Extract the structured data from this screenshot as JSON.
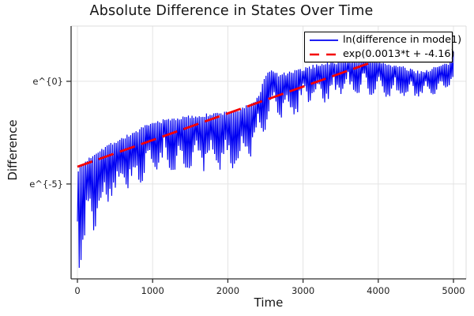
{
  "title": "Absolute Difference in States Over Time",
  "chart_data": {
    "type": "line",
    "title": "Absolute Difference in States Over Time",
    "xlabel": "Time",
    "ylabel": "Difference",
    "x_ticks": [
      0,
      1000,
      2000,
      3000,
      4000,
      5000
    ],
    "x_tick_labels": [
      "0",
      "1000",
      "2000",
      "3000",
      "4000",
      "5000"
    ],
    "y_tick_labels": [
      "e^{0}",
      "e^{-5}"
    ],
    "y_tick_values_ln": [
      0,
      -5
    ],
    "xlim": [
      -84,
      5168
    ],
    "ylim_ln": [
      -9.62,
      2.69
    ],
    "grid": true,
    "legend_position": "top-right",
    "grid_color": "#e4e4e4",
    "axis_color": "#2f2f2f",
    "frame_light_color": "#dcdcdc",
    "series": [
      {
        "name": "ln(difference in mode1)",
        "color": "#0000f2",
        "style": "solid",
        "spike_period": 24,
        "t_range": [
          0,
          5000
        ],
        "envelope_top": [
          [
            0,
            -4.35
          ],
          [
            100,
            -3.95
          ],
          [
            200,
            -3.62
          ],
          [
            300,
            -3.35
          ],
          [
            450,
            -3.05
          ],
          [
            600,
            -2.78
          ],
          [
            750,
            -2.52
          ],
          [
            900,
            -2.22
          ],
          [
            1050,
            -2.0
          ],
          [
            1200,
            -1.88
          ],
          [
            1400,
            -1.78
          ],
          [
            1600,
            -1.7
          ],
          [
            1800,
            -1.62
          ],
          [
            2000,
            -1.52
          ],
          [
            2150,
            -1.42
          ],
          [
            2300,
            -1.15
          ],
          [
            2400,
            -0.8
          ],
          [
            2470,
            -0.1
          ],
          [
            2520,
            0.45
          ],
          [
            2570,
            0.5
          ],
          [
            2680,
            0.3
          ],
          [
            2800,
            0.38
          ],
          [
            2950,
            0.52
          ],
          [
            3100,
            0.68
          ],
          [
            3250,
            0.85
          ],
          [
            3450,
            0.9
          ],
          [
            3650,
            1.0
          ],
          [
            3850,
            1.05
          ],
          [
            3980,
            0.98
          ],
          [
            4150,
            0.8
          ],
          [
            4300,
            0.68
          ],
          [
            4450,
            0.5
          ],
          [
            4600,
            0.45
          ],
          [
            4750,
            0.65
          ],
          [
            4900,
            0.8
          ],
          [
            4970,
            0.95
          ],
          [
            5000,
            1.4
          ]
        ],
        "envelope_bottom": [
          [
            0,
            -8.3
          ],
          [
            30,
            -9.4
          ],
          [
            90,
            -8.5
          ],
          [
            160,
            -7.7
          ],
          [
            260,
            -6.9
          ],
          [
            360,
            -6.3
          ],
          [
            470,
            -5.8
          ],
          [
            620,
            -5.4
          ],
          [
            820,
            -5.0
          ],
          [
            1000,
            -4.4
          ],
          [
            1300,
            -4.3
          ],
          [
            1600,
            -4.4
          ],
          [
            1900,
            -4.3
          ],
          [
            2150,
            -4.2
          ],
          [
            2300,
            -3.7
          ],
          [
            2400,
            -2.7
          ],
          [
            2500,
            -2.35
          ],
          [
            2620,
            -1.5
          ],
          [
            2760,
            -1.9
          ],
          [
            2900,
            -1.6
          ],
          [
            3000,
            -1.25
          ],
          [
            3150,
            -0.95
          ],
          [
            3300,
            -1.05
          ],
          [
            3500,
            -0.75
          ],
          [
            3700,
            -0.6
          ],
          [
            3900,
            -0.65
          ],
          [
            4100,
            -0.75
          ],
          [
            4300,
            -0.9
          ],
          [
            4500,
            -0.85
          ],
          [
            4700,
            -0.65
          ],
          [
            4850,
            -0.55
          ],
          [
            5000,
            -0.35
          ]
        ]
      },
      {
        "name": "exp(0.0013*t + -4.16)",
        "color": "#f40000",
        "style": "dashed",
        "slope": 0.0013,
        "intercept": -4.16,
        "t_range": [
          0,
          4900
        ]
      }
    ]
  }
}
